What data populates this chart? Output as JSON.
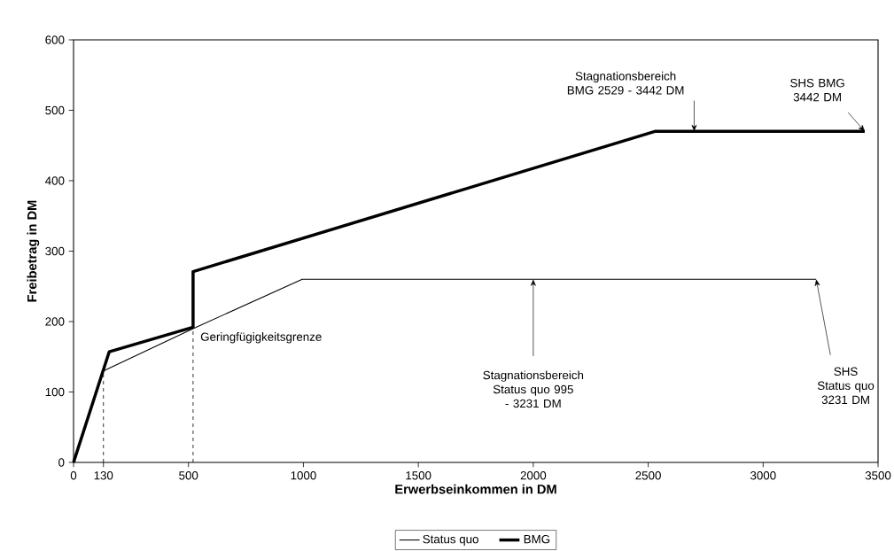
{
  "chart_data": {
    "type": "line",
    "xlabel": "Erwerbseinkommen in DM",
    "ylabel": "Freibetrag in DM",
    "xlim": [
      0,
      3500
    ],
    "xticks": [
      0,
      130,
      500,
      1000,
      1500,
      2000,
      2500,
      3000,
      3500
    ],
    "ylim": [
      0,
      600
    ],
    "yticks": [
      0,
      100,
      200,
      300,
      400,
      500,
      600
    ],
    "grid": false,
    "legend": "bottom",
    "marker": "none",
    "series": [
      {
        "name": "Status quo",
        "color": "#000000",
        "line_style": "solid",
        "x": [
          0,
          130,
          520,
          995,
          3231
        ],
        "values": [
          0,
          130,
          190,
          260,
          260
        ]
      },
      {
        "name": "BMG",
        "color": "#000000",
        "line_style": "solid",
        "x": [
          0,
          155,
          520,
          520,
          2529,
          3442
        ],
        "values": [
          0,
          157,
          192,
          271,
          470,
          470
        ]
      },
      {
        "color": "#000000",
        "line_style": "dashed",
        "x": [
          130,
          130
        ],
        "values": [
          0,
          130
        ]
      },
      {
        "color": "#000000",
        "line_style": "dashed",
        "x": [
          520,
          520
        ],
        "values": [
          0,
          190
        ]
      }
    ],
    "annotations": [
      {
        "text": "Stagnationsbereich BMG 2529 - 3442 DM",
        "x": 2700,
        "y": 470
      },
      {
        "text": "SHS BMG 3442 DM",
        "x": 3442,
        "y": 470
      },
      {
        "text": "Stagnationsbereich Status quo 995 - 3231 DM",
        "x": 2000,
        "y": 260
      },
      {
        "text": "SHS Status quo 3231 DM",
        "x": 3231,
        "y": 260
      },
      {
        "text": "Geringfügigkeitsgrenze",
        "x": 520,
        "y": 177
      }
    ]
  }
}
